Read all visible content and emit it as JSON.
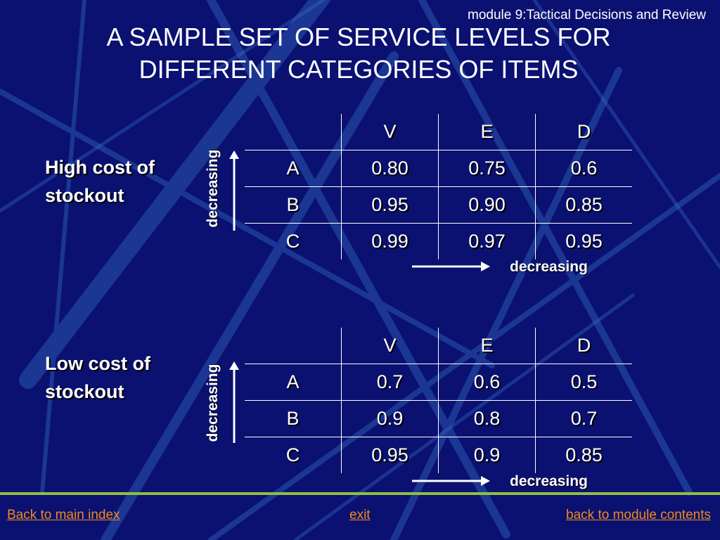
{
  "header_note": "module 9:Tactical Decisions and Review",
  "title": {
    "line1": "A SAMPLE SET OF SERVICE LEVELS FOR",
    "line2": "DIFFERENT CATEGORIES OF ITEMS"
  },
  "tables": [
    {
      "label_line1": "High cost of",
      "label_line2": "stockout",
      "vertical_label": "decreasing",
      "horizontal_label": "decreasing",
      "columns": [
        "V",
        "E",
        "D"
      ],
      "rows": [
        {
          "head": "A",
          "cells": [
            "0.80",
            "0.75",
            "0.6"
          ]
        },
        {
          "head": "B",
          "cells": [
            "0.95",
            "0.90",
            "0.85"
          ]
        },
        {
          "head": "C",
          "cells": [
            "0.99",
            "0.97",
            "0.95"
          ]
        }
      ]
    },
    {
      "label_line1": "Low cost of",
      "label_line2": "stockout",
      "vertical_label": "decreasing",
      "horizontal_label": "decreasing",
      "columns": [
        "V",
        "E",
        "D"
      ],
      "rows": [
        {
          "head": "A",
          "cells": [
            "0.7",
            "0.6",
            "0.5"
          ]
        },
        {
          "head": "B",
          "cells": [
            "0.9",
            "0.8",
            "0.7"
          ]
        },
        {
          "head": "C",
          "cells": [
            "0.95",
            "0.9",
            "0.85"
          ]
        }
      ]
    }
  ],
  "footer": {
    "back_main": "Back to main index",
    "exit": "exit",
    "back_module": "back to module contents"
  },
  "colors": {
    "background": "#0a1170",
    "link": "#f08a1a",
    "divider": "#8fbf3f"
  }
}
